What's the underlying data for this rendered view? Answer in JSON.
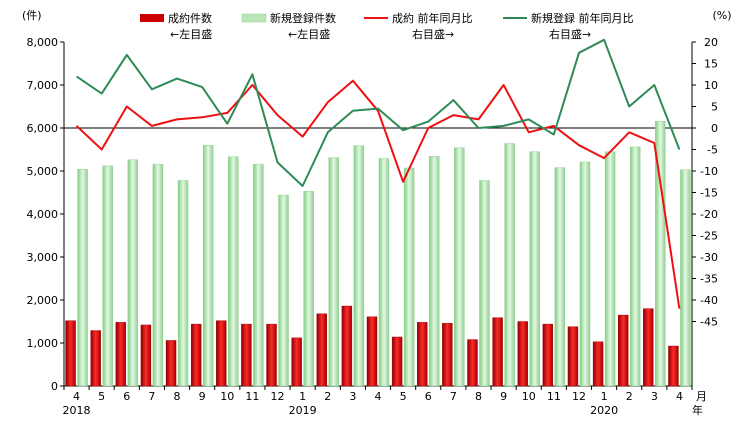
{
  "chart_data": {
    "type": "bar",
    "left_axis": {
      "unit": "(件)",
      "min": 0,
      "max": 8000,
      "ticks": [
        "0",
        "1,000",
        "2,000",
        "3,000",
        "4,000",
        "5,000",
        "6,000",
        "7,000",
        "8,000"
      ]
    },
    "right_axis": {
      "unit": "(%)",
      "min": -60,
      "max": 20,
      "ticks": [
        "20",
        "15",
        "10",
        "5",
        "0",
        "-5",
        "-10",
        "-15",
        "-20",
        "-25",
        "-30",
        "-35",
        "-40",
        "-45"
      ]
    },
    "categories": [
      "4",
      "5",
      "6",
      "7",
      "8",
      "9",
      "10",
      "11",
      "12",
      "1",
      "2",
      "3",
      "4",
      "5",
      "6",
      "7",
      "8",
      "9",
      "10",
      "11",
      "12",
      "1",
      "2",
      "3",
      "4"
    ],
    "x_unit_labels": [
      "月",
      "年"
    ],
    "year_labels": [
      {
        "text": "2018",
        "index": 0
      },
      {
        "text": "2019",
        "index": 9
      },
      {
        "text": "2020",
        "index": 21
      }
    ],
    "series": [
      {
        "name": "成約件数",
        "note": "←左目盛",
        "kind": "bar",
        "axis": "left",
        "color": "#cc0000",
        "values": [
          1520,
          1290,
          1480,
          1420,
          1060,
          1440,
          1520,
          1440,
          1440,
          1120,
          1680,
          1860,
          1610,
          1140,
          1480,
          1460,
          1080,
          1590,
          1500,
          1440,
          1380,
          1030,
          1650,
          1800,
          930
        ]
      },
      {
        "name": "新規登録件数",
        "note": "←左目盛",
        "kind": "bar",
        "axis": "left",
        "color": "#b9e6b9",
        "values": [
          5040,
          5120,
          5260,
          5160,
          4780,
          5600,
          5330,
          5160,
          4440,
          4530,
          5310,
          5590,
          5290,
          5070,
          5340,
          5540,
          4780,
          5640,
          5450,
          5080,
          5210,
          5450,
          5560,
          6160,
          5030
        ]
      },
      {
        "name": "成約 前年同月比",
        "note": "右目盛→",
        "kind": "line",
        "axis": "right",
        "color": "#ee1111",
        "values": [
          0.5,
          -5,
          5,
          0.5,
          2,
          2.5,
          3.5,
          10,
          3,
          -2,
          6,
          11,
          4,
          -12.5,
          0,
          3,
          2,
          10,
          -1,
          0.5,
          -4,
          -7,
          -1,
          -3.5,
          -42
        ]
      },
      {
        "name": "新規登録 前年同月比",
        "note": "右目盛→",
        "kind": "line",
        "axis": "right",
        "color": "#2e8b57",
        "values": [
          12,
          8,
          17,
          9,
          11.5,
          9.5,
          1,
          12.5,
          -8,
          -13.5,
          -1,
          4,
          4.5,
          -0.5,
          1.5,
          6.5,
          0,
          0.5,
          2,
          -1.5,
          17.5,
          20.5,
          5,
          10,
          -5
        ]
      }
    ]
  }
}
